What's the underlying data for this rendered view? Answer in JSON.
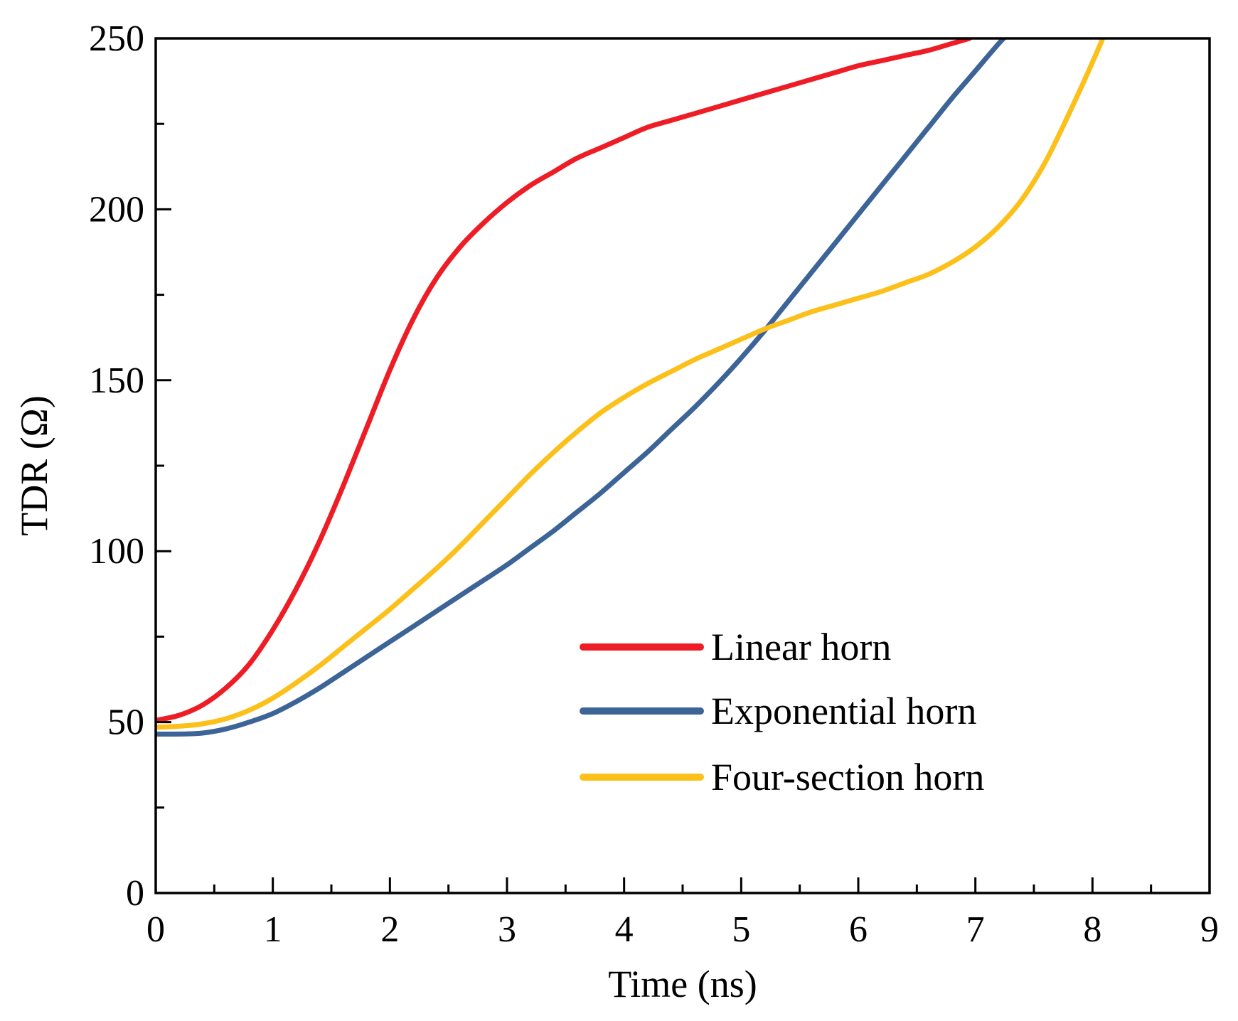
{
  "chart_data": {
    "type": "line",
    "title": "",
    "xlabel": "Time (ns)",
    "ylabel": "TDR (Ω)",
    "xlim": [
      0,
      9
    ],
    "ylim": [
      0,
      250
    ],
    "x_ticks": [
      0,
      1,
      2,
      3,
      4,
      5,
      6,
      7,
      8,
      9
    ],
    "x_tick_labels": [
      "0",
      "1",
      "2",
      "3",
      "4",
      "5",
      "6",
      "7",
      "8",
      "9"
    ],
    "y_ticks": [
      0,
      50,
      100,
      150,
      200,
      250
    ],
    "y_tick_labels": [
      "0",
      "50",
      "100",
      "150",
      "200",
      "250"
    ],
    "grid": false,
    "legend_position": "lower-right",
    "series": [
      {
        "name": "Linear horn",
        "color": "#ee1c25",
        "points": [
          [
            0,
            50.5
          ],
          [
            0.2,
            52
          ],
          [
            0.4,
            55
          ],
          [
            0.6,
            60
          ],
          [
            0.8,
            67
          ],
          [
            1.0,
            77
          ],
          [
            1.2,
            89
          ],
          [
            1.4,
            103
          ],
          [
            1.6,
            119
          ],
          [
            1.8,
            136
          ],
          [
            2.0,
            153
          ],
          [
            2.2,
            168
          ],
          [
            2.4,
            180
          ],
          [
            2.6,
            189
          ],
          [
            2.8,
            196
          ],
          [
            3.0,
            202
          ],
          [
            3.2,
            207
          ],
          [
            3.4,
            211
          ],
          [
            3.6,
            215
          ],
          [
            3.8,
            218
          ],
          [
            4.0,
            221
          ],
          [
            4.2,
            224
          ],
          [
            4.4,
            226
          ],
          [
            4.6,
            228
          ],
          [
            4.8,
            230
          ],
          [
            5.0,
            232
          ],
          [
            5.2,
            234
          ],
          [
            5.4,
            236
          ],
          [
            5.6,
            238
          ],
          [
            5.8,
            240
          ],
          [
            6.0,
            242
          ],
          [
            6.2,
            243.5
          ],
          [
            6.4,
            245
          ],
          [
            6.6,
            246.5
          ],
          [
            6.8,
            248.5
          ],
          [
            6.95,
            250
          ]
        ]
      },
      {
        "name": "Exponential horn",
        "color": "#3d6497",
        "points": [
          [
            0,
            46.5
          ],
          [
            0.2,
            46.5
          ],
          [
            0.4,
            46.8
          ],
          [
            0.6,
            48
          ],
          [
            0.8,
            50
          ],
          [
            1.0,
            52.5
          ],
          [
            1.2,
            56
          ],
          [
            1.4,
            60
          ],
          [
            1.6,
            64.5
          ],
          [
            1.8,
            69
          ],
          [
            2.0,
            73.5
          ],
          [
            2.2,
            78
          ],
          [
            2.4,
            82.5
          ],
          [
            2.6,
            87
          ],
          [
            2.8,
            91.5
          ],
          [
            3.0,
            96
          ],
          [
            3.2,
            101
          ],
          [
            3.4,
            106
          ],
          [
            3.6,
            111.5
          ],
          [
            3.8,
            117
          ],
          [
            4.0,
            123
          ],
          [
            4.2,
            129
          ],
          [
            4.4,
            135.5
          ],
          [
            4.6,
            142
          ],
          [
            4.8,
            149
          ],
          [
            5.0,
            156.5
          ],
          [
            5.2,
            164.5
          ],
          [
            5.4,
            173
          ],
          [
            5.6,
            181.5
          ],
          [
            5.8,
            190
          ],
          [
            6.0,
            198.5
          ],
          [
            6.2,
            207
          ],
          [
            6.4,
            215.5
          ],
          [
            6.6,
            224
          ],
          [
            6.8,
            232.5
          ],
          [
            7.0,
            240.5
          ],
          [
            7.2,
            248.5
          ],
          [
            7.3,
            252
          ]
        ]
      },
      {
        "name": "Four-section horn",
        "color": "#fcc01b",
        "points": [
          [
            0,
            48.5
          ],
          [
            0.2,
            48.8
          ],
          [
            0.4,
            49.5
          ],
          [
            0.6,
            51
          ],
          [
            0.8,
            53.5
          ],
          [
            1.0,
            57
          ],
          [
            1.2,
            61.5
          ],
          [
            1.4,
            66.5
          ],
          [
            1.6,
            72
          ],
          [
            1.8,
            77.5
          ],
          [
            2.0,
            83
          ],
          [
            2.2,
            89
          ],
          [
            2.4,
            95
          ],
          [
            2.6,
            101.5
          ],
          [
            2.8,
            108.5
          ],
          [
            3.0,
            115.5
          ],
          [
            3.2,
            122.5
          ],
          [
            3.4,
            129
          ],
          [
            3.6,
            135
          ],
          [
            3.8,
            140.5
          ],
          [
            4.0,
            145
          ],
          [
            4.2,
            149
          ],
          [
            4.4,
            152.5
          ],
          [
            4.6,
            156
          ],
          [
            4.8,
            159
          ],
          [
            5.0,
            162
          ],
          [
            5.2,
            165
          ],
          [
            5.4,
            167.5
          ],
          [
            5.6,
            170
          ],
          [
            5.8,
            172
          ],
          [
            6.0,
            174
          ],
          [
            6.2,
            176
          ],
          [
            6.4,
            178.5
          ],
          [
            6.6,
            181
          ],
          [
            6.8,
            184.5
          ],
          [
            7.0,
            189
          ],
          [
            7.2,
            195
          ],
          [
            7.4,
            203
          ],
          [
            7.6,
            214
          ],
          [
            7.8,
            228
          ],
          [
            8.0,
            243
          ],
          [
            8.1,
            251
          ]
        ]
      }
    ]
  }
}
